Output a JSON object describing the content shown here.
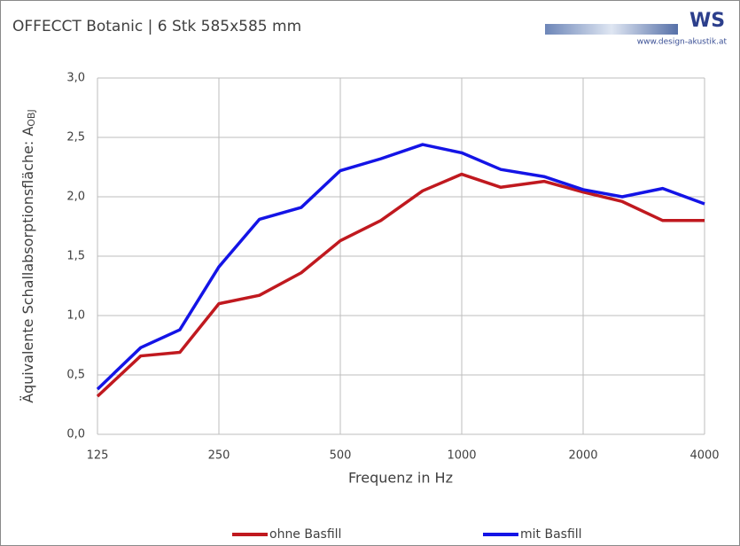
{
  "chart_data": {
    "type": "line",
    "title": "OFFECCT Botanic  | 6 Stk 585x585 mm",
    "logo": "WS",
    "website": "www.design-akustik.at",
    "x_label": "Frequenz in Hz",
    "y_label": "Äquivalente Schallabsorptionsfläche: A",
    "y_label_sub": "OBJ",
    "x": [
      125,
      160,
      200,
      250,
      315,
      400,
      500,
      630,
      800,
      1000,
      1250,
      1600,
      2000,
      2500,
      3150,
      4000
    ],
    "xlim": [
      125,
      4000
    ],
    "xticks": [
      125,
      250,
      500,
      1000,
      2000,
      4000
    ],
    "xlog": true,
    "ylim": [
      0,
      3
    ],
    "yticks": [
      {
        "value": 0,
        "label": "0,0"
      },
      {
        "value": 0.5,
        "label": "0,5"
      },
      {
        "value": 1,
        "label": "1,0"
      },
      {
        "value": 1.5,
        "label": "1,5"
      },
      {
        "value": 2,
        "label": "2,0"
      },
      {
        "value": 2.5,
        "label": "2,5"
      },
      {
        "value": 3,
        "label": "3,0"
      }
    ],
    "grid": true,
    "legend": "bottom",
    "series": [
      {
        "name": "ohne Basfill",
        "color": "#c0191f",
        "values": [
          0.32,
          0.66,
          0.69,
          1.1,
          1.17,
          1.36,
          1.63,
          1.8,
          2.05,
          2.19,
          2.08,
          2.13,
          2.04,
          1.96,
          1.8,
          1.8
        ]
      },
      {
        "name": "mit Basfill",
        "color": "#1414e6",
        "values": [
          0.38,
          0.73,
          0.88,
          1.41,
          1.81,
          1.91,
          2.22,
          2.32,
          2.44,
          2.37,
          2.23,
          2.17,
          2.06,
          2.0,
          2.07,
          1.94
        ]
      }
    ]
  }
}
